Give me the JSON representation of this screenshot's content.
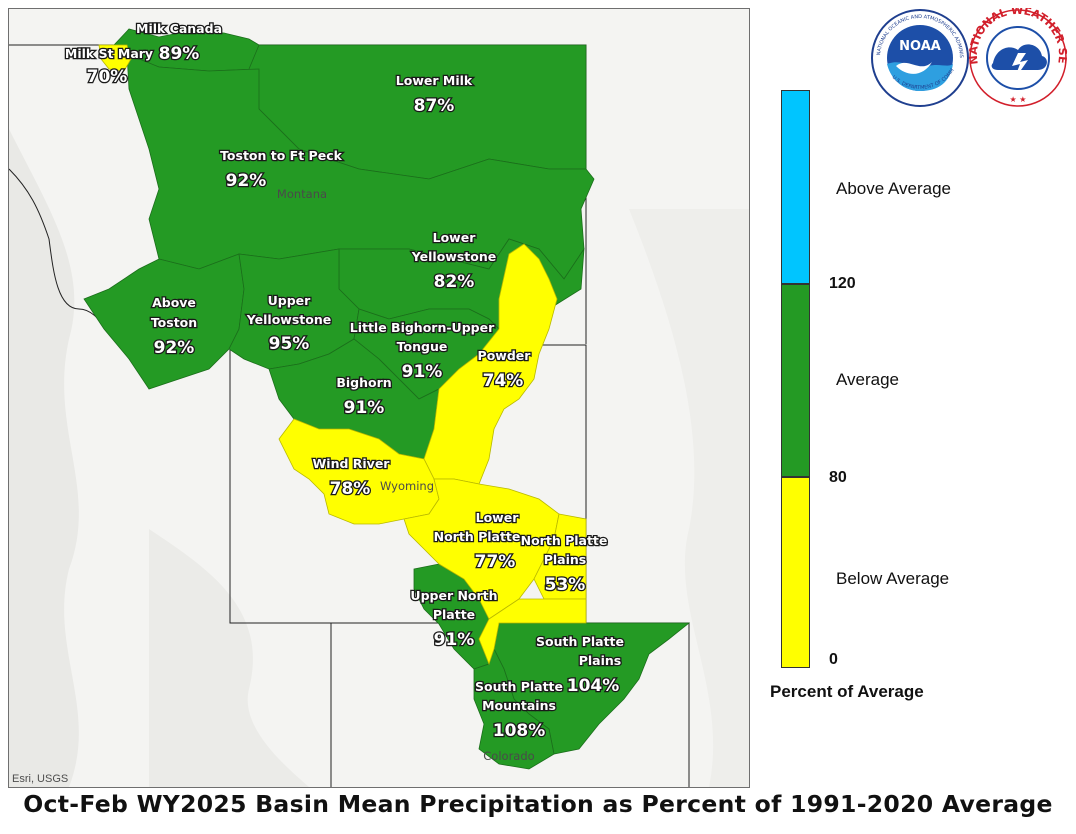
{
  "title": "Oct-Feb WY2025 Basin Mean Precipitation as Percent of 1991-2020 Average",
  "credit": "Esri, USGS",
  "logos": {
    "noaa_text": "NOAA",
    "noaa_ring": "NATIONAL OCEANIC AND ATMOSPHERIC ADMINISTRATION",
    "noaa_ring_bottom": "U.S. DEPARTMENT OF COMMERCE",
    "nws_ring": "NATIONAL WEATHER SERVICE"
  },
  "legend": {
    "title": "Percent of Average",
    "classes": [
      {
        "label": "Above Average",
        "color": "#00c5ff"
      },
      {
        "label": "Average",
        "color": "#249a24"
      },
      {
        "label": "Below Average",
        "color": "#ffff00"
      }
    ],
    "ticks": [
      "120",
      "80",
      "0"
    ]
  },
  "colors": {
    "below": "#ffff00",
    "average": "#249a24",
    "above": "#00c5ff"
  },
  "states": [
    "Montana",
    "Wyoming",
    "Colorado"
  ],
  "basins": [
    {
      "name": "Milk Canada",
      "percent": "89%",
      "class": "average"
    },
    {
      "name": "Milk St Mary",
      "percent": "70%",
      "class": "below"
    },
    {
      "name": "Lower Milk",
      "percent": "87%",
      "class": "average"
    },
    {
      "name": "Toston to Ft Peck",
      "percent": "92%",
      "class": "average"
    },
    {
      "name": "Lower Yellowstone",
      "percent": "82%",
      "class": "average"
    },
    {
      "name": "Above Toston",
      "percent": "92%",
      "class": "average"
    },
    {
      "name": "Upper Yellowstone",
      "percent": "95%",
      "class": "average"
    },
    {
      "name": "Little Bighorn-Upper Tongue",
      "percent": "91%",
      "class": "average"
    },
    {
      "name": "Powder",
      "percent": "74%",
      "class": "below"
    },
    {
      "name": "Bighorn",
      "percent": "91%",
      "class": "average"
    },
    {
      "name": "Wind River",
      "percent": "78%",
      "class": "below"
    },
    {
      "name": "Lower North Platte",
      "percent": "77%",
      "class": "below"
    },
    {
      "name": "North Platte Plains",
      "percent": "53%",
      "class": "below"
    },
    {
      "name": "Upper North Platte",
      "percent": "91%",
      "class": "average"
    },
    {
      "name": "South Platte Plains",
      "percent": "104%",
      "class": "average"
    },
    {
      "name": "South Platte Mountains",
      "percent": "108%",
      "class": "average"
    }
  ]
}
